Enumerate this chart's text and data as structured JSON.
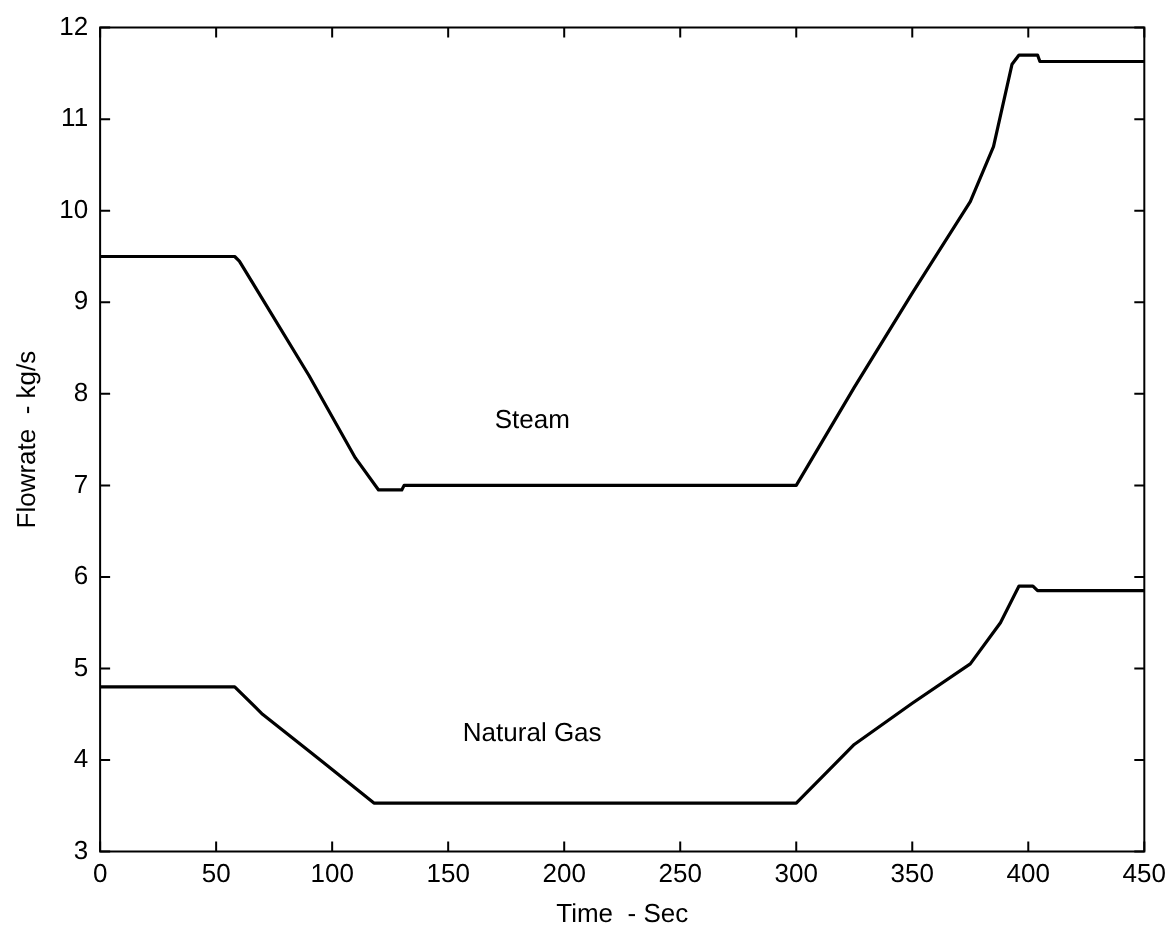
{
  "chart_data": {
    "type": "line",
    "xlabel": "Time  - Sec",
    "ylabel": "Flowrate  - kg/s",
    "xlim": [
      0,
      450
    ],
    "xticks": [
      0,
      50,
      100,
      150,
      200,
      250,
      300,
      350,
      400,
      450
    ],
    "ylim": [
      3,
      12
    ],
    "yticks": [
      3,
      4,
      5,
      6,
      7,
      8,
      9,
      10,
      11,
      12
    ],
    "marker": "none",
    "line_style": "solid",
    "series": [
      {
        "name": "Steam",
        "color": "#000000",
        "x": [
          0,
          58,
          60,
          90,
          110,
          120,
          130,
          131,
          300,
          325,
          350,
          375,
          385,
          393,
          396,
          404,
          405,
          450
        ],
        "values": [
          9.5,
          9.5,
          9.45,
          8.2,
          7.3,
          6.95,
          6.95,
          7.0,
          7.0,
          8.07,
          9.1,
          10.1,
          10.7,
          11.6,
          11.7,
          11.7,
          11.63,
          11.63
        ]
      },
      {
        "name": "Natural Gas",
        "color": "#000000",
        "x": [
          0,
          58,
          70,
          90,
          118,
          300,
          325,
          350,
          375,
          388,
          396,
          402,
          404,
          450
        ],
        "values": [
          4.8,
          4.8,
          4.5,
          4.1,
          3.53,
          3.53,
          4.17,
          4.62,
          5.05,
          5.5,
          5.9,
          5.9,
          5.85,
          5.85
        ]
      }
    ]
  }
}
